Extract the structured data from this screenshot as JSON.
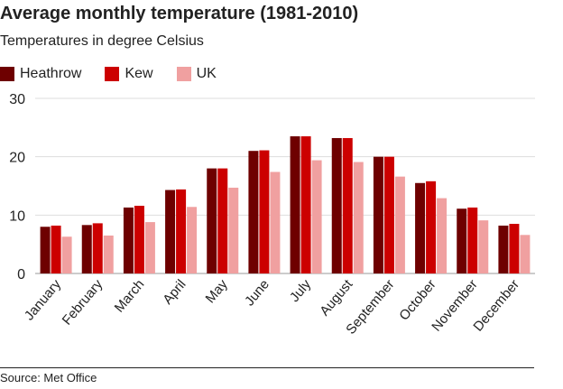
{
  "colors": {
    "heathrow": "#6e0000",
    "kew": "#cc0000",
    "uk": "#f0a0a0",
    "grid": "#dddddd",
    "axis": "#999999",
    "text": "#222222"
  },
  "chart_data": {
    "type": "bar",
    "title": "Average monthly temperature (1981-2010)",
    "subtitle": "Temperatures in degree Celsius",
    "xlabel": "",
    "ylabel": "",
    "ylim": [
      0,
      30
    ],
    "yticks": [
      0,
      10,
      20,
      30
    ],
    "grid": true,
    "legend_position": "top-left",
    "categories": [
      "January",
      "February",
      "March",
      "April",
      "May",
      "June",
      "July",
      "August",
      "September",
      "October",
      "November",
      "December"
    ],
    "series": [
      {
        "name": "Heathrow",
        "values": [
          8.0,
          8.3,
          11.3,
          14.3,
          18.0,
          21.0,
          23.5,
          23.2,
          20.0,
          15.5,
          11.1,
          8.2
        ]
      },
      {
        "name": "Kew",
        "values": [
          8.2,
          8.6,
          11.6,
          14.4,
          18.0,
          21.1,
          23.5,
          23.2,
          20.0,
          15.8,
          11.3,
          8.5
        ]
      },
      {
        "name": "UK",
        "values": [
          6.3,
          6.5,
          8.8,
          11.4,
          14.7,
          17.4,
          19.4,
          19.1,
          16.6,
          12.9,
          9.1,
          6.6
        ]
      }
    ]
  },
  "source": "Source: Met Office"
}
